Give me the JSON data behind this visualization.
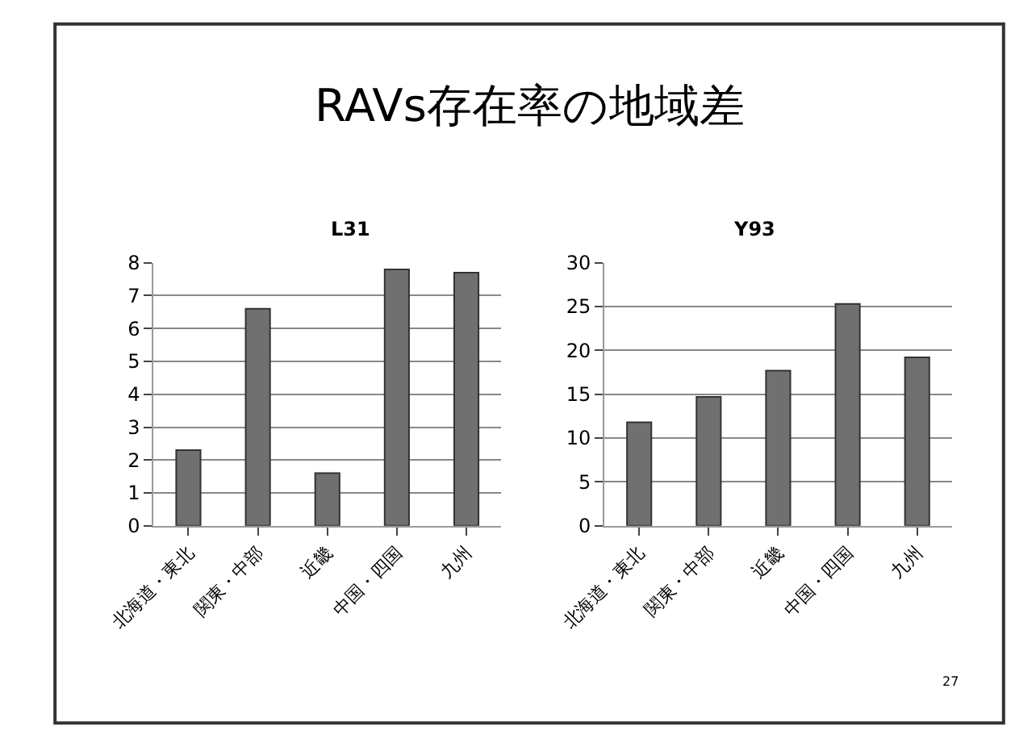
{
  "chart_data": [
    {
      "type": "bar",
      "title": "L31",
      "annotations": [
        "RAVs存在率の地域差"
      ],
      "categories": [
        "北海道・東北",
        "関東・中部",
        "近畿",
        "中国・四国",
        "九州"
      ],
      "values": [
        2.3,
        6.6,
        1.6,
        7.8,
        7.7
      ],
      "color": "#707070",
      "ylim": [
        0,
        8
      ],
      "yticks": [
        0,
        1,
        2,
        3,
        4,
        5,
        6,
        7,
        8
      ],
      "grid": "y"
    },
    {
      "type": "bar",
      "title": "Y93",
      "annotations": [
        "27"
      ],
      "categories": [
        "北海道・東北",
        "関東・中部",
        "近畿",
        "中国・四国",
        "九州"
      ],
      "values": [
        11.8,
        14.7,
        17.7,
        25.3,
        19.2
      ],
      "color": "#707070",
      "ylim": [
        0,
        30
      ],
      "yticks": [
        0,
        5,
        10,
        15,
        20,
        25,
        30
      ],
      "grid": "y"
    }
  ]
}
